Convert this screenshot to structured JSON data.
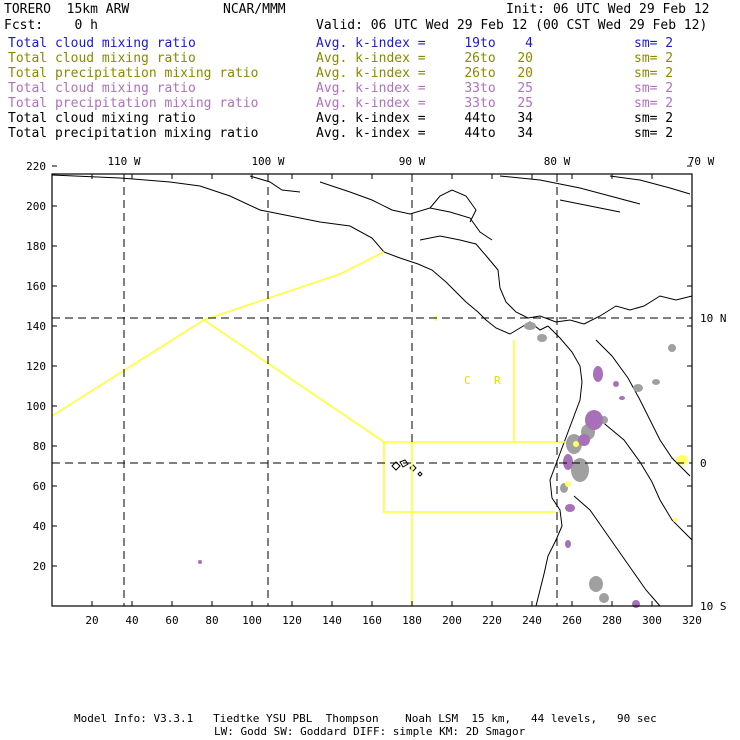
{
  "header": {
    "model": "TORERO  15km ARW",
    "org": "NCAR/MMM",
    "init": "Init: 06 UTC Wed 29 Feb 12",
    "fcst": "Fcst:    0 h",
    "valid": "Valid: 06 UTC Wed 29 Feb 12 (00 CST Wed 29 Feb 12)"
  },
  "legend": [
    {
      "name": "Total cloud mixing ratio",
      "index_label": "Avg. k-index =",
      "from": "19",
      "to_word": "to",
      "to": "4",
      "sm": "sm= 2",
      "color": "#1a1acc"
    },
    {
      "name": "Total cloud mixing ratio",
      "index_label": "Avg. k-index =",
      "from": "26",
      "to_word": "to",
      "to": "20",
      "sm": "sm= 2",
      "color": "#8a8a00"
    },
    {
      "name": "Total precipitation mixing ratio",
      "index_label": "Avg. k-index =",
      "from": "26",
      "to_word": "to",
      "to": "20",
      "sm": "sm= 2",
      "color": "#8a8a00"
    },
    {
      "name": "Total cloud mixing ratio",
      "index_label": "Avg. k-index =",
      "from": "33",
      "to_word": "to",
      "to": "25",
      "sm": "sm= 2",
      "color": "#b070c0"
    },
    {
      "name": "Total precipitation mixing ratio",
      "index_label": "Avg. k-index =",
      "from": "33",
      "to_word": "to",
      "to": "25",
      "sm": "sm= 2",
      "color": "#b070c0"
    },
    {
      "name": "Total cloud mixing ratio",
      "index_label": "Avg. k-index =",
      "from": "44",
      "to_word": "to",
      "to": "34",
      "sm": "sm= 2",
      "color": "#000000"
    },
    {
      "name": "Total precipitation mixing ratio",
      "index_label": "Avg. k-index =",
      "from": "44",
      "to_word": "to",
      "to": "34",
      "sm": "sm= 2",
      "color": "#000000"
    }
  ],
  "map": {
    "top_lon_labels": [
      "110 W",
      "100 W",
      "90 W",
      "80 W",
      "70 W"
    ],
    "right_lat_labels": [
      "10 N",
      "0",
      "10 S"
    ],
    "y_ticks": [
      "20",
      "40",
      "60",
      "80",
      "100",
      "120",
      "140",
      "160",
      "180",
      "200",
      "220"
    ],
    "x_ticks": [
      "20",
      "40",
      "60",
      "80",
      "100",
      "120",
      "140",
      "160",
      "180",
      "200",
      "220",
      "240",
      "260",
      "280",
      "300",
      "320"
    ],
    "region_labels": [
      "C",
      "R"
    ],
    "colors": {
      "frame": "#000000",
      "coast": "#000000",
      "boundary": "#ffff33",
      "gray_cloud": "#a0a0a0",
      "purple_cloud": "#a870b8",
      "yellow_cloud": "#ffff66",
      "region_label": "#e8d800"
    }
  },
  "footer": {
    "line1": "Model Info: V3.3.1   Tiedtke YSU PBL  Thompson    Noah LSM  15 km,   44 levels,   90 sec",
    "line2": "LW: Godd SW: Goddard DIFF: simple KM: 2D Smagor"
  }
}
